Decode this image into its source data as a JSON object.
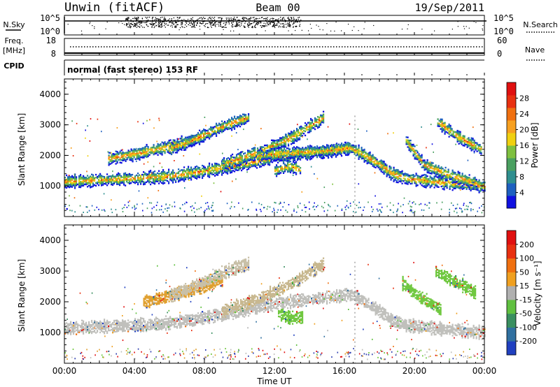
{
  "header": {
    "station": "Unwin (fitACF)",
    "beam": "Beam 00",
    "date": "19/Sep/2011"
  },
  "top_panels": {
    "nsky_label": "N.Sky",
    "nsky_ticks": [
      "10^5",
      "10^0"
    ],
    "nsearch_label": "N.Search",
    "nsearch_ticks": [
      "10^5",
      "10^0"
    ],
    "freq_label_1": "Freq.",
    "freq_label_2": "[MHz]",
    "freq_ticks": [
      "18",
      "8"
    ],
    "nave_label": "Nave",
    "nave_ticks": [
      "60",
      "0"
    ],
    "cpid_label": "CPID",
    "cpid_text": "normal (fast stereo) 153 RF"
  },
  "chart_data": [
    {
      "type": "heatmap",
      "name": "power-panel",
      "ylabel": "Slant Range [km]",
      "ylim": [
        0,
        4500
      ],
      "yticks": [
        "1000",
        "2000",
        "3000",
        "4000"
      ],
      "xlim_hours": [
        0,
        24
      ],
      "colorbar": {
        "label": "Power [dB]",
        "ticks": [
          "28",
          "24",
          "20",
          "16",
          "12",
          "8",
          "4"
        ],
        "colors": [
          "#1010e0",
          "#1e60c0",
          "#2f8f8f",
          "#4aa060",
          "#7fc040",
          "#f0d010",
          "#f7a020",
          "#f07010",
          "#e83010",
          "#e01010"
        ]
      },
      "echo_bands": [
        {
          "t": [
            0.0,
            2,
            4,
            6,
            8,
            10,
            12,
            14,
            15,
            16.3
          ],
          "r": [
            1150,
            1200,
            1250,
            1320,
            1500,
            1700,
            1950,
            2100,
            2150,
            2250
          ]
        },
        {
          "t": [
            2.5,
            4,
            6,
            7.5
          ],
          "r": [
            1900,
            2050,
            2300,
            2550
          ]
        },
        {
          "t": [
            6,
            7.5,
            9,
            10.5
          ],
          "r": [
            2200,
            2550,
            2950,
            3250
          ]
        },
        {
          "t": [
            9,
            11,
            13,
            14.8
          ],
          "r": [
            1700,
            2100,
            2600,
            3250
          ]
        },
        {
          "t": [
            11,
            13,
            15,
            16.3
          ],
          "r": [
            2000,
            2100,
            2150,
            2250
          ]
        },
        {
          "t": [
            16.3,
            17,
            18,
            18.7,
            19.5,
            21,
            23,
            24
          ],
          "r": [
            2250,
            2050,
            1700,
            1400,
            1250,
            1150,
            1050,
            1000
          ]
        },
        {
          "t": [
            19.5,
            20.5,
            22,
            23.5
          ],
          "r": [
            2500,
            1700,
            1350,
            1100
          ]
        },
        {
          "t": [
            21.3,
            22.5,
            23.8
          ],
          "r": [
            3100,
            2600,
            2200
          ]
        },
        {
          "t": [
            12,
            12.8,
            13.5
          ],
          "r": [
            1500,
            1650,
            1550
          ]
        }
      ]
    },
    {
      "type": "heatmap",
      "name": "velocity-panel",
      "ylabel": "Slant Range [km]",
      "ylim": [
        0,
        4500
      ],
      "yticks": [
        "1000",
        "2000",
        "3000",
        "4000"
      ],
      "xlim_hours": [
        0,
        24
      ],
      "xticks": [
        "00:00",
        "04:00",
        "08:00",
        "12:00",
        "16:00",
        "20:00",
        "00:00"
      ],
      "xlabel": "Time UT",
      "colorbar": {
        "label": "Velocity [m s⁻¹]",
        "ticks": [
          "200",
          "100",
          "50",
          "15",
          "-15",
          "-50",
          "-100",
          "-200"
        ],
        "colors": [
          "#2040c0",
          "#3070a0",
          "#3a8f60",
          "#60c040",
          "#b0b0b0",
          "#f0a020",
          "#f07010",
          "#e83010",
          "#e01010"
        ]
      },
      "echo_bands": [
        {
          "t": [
            0.0,
            2,
            4,
            6,
            8,
            10,
            12,
            14,
            15,
            16.3
          ],
          "r": [
            1150,
            1200,
            1250,
            1320,
            1500,
            1700,
            1950,
            2100,
            2150,
            2250
          ],
          "c": "#c0c0bc"
        },
        {
          "t": [
            4.5,
            6,
            7.5,
            9
          ],
          "r": [
            2000,
            2200,
            2450,
            2700
          ],
          "c": "#e0a030"
        },
        {
          "t": [
            6,
            7.5,
            9,
            10.5
          ],
          "r": [
            2200,
            2550,
            2950,
            3250
          ],
          "c": "#c8c0a8"
        },
        {
          "t": [
            9,
            11,
            13,
            14.8
          ],
          "r": [
            1700,
            2100,
            2600,
            3250
          ],
          "c": "#c8b890"
        },
        {
          "t": [
            16.3,
            17,
            18,
            18.7,
            19.5,
            21,
            23,
            24
          ],
          "r": [
            2250,
            2050,
            1700,
            1400,
            1250,
            1150,
            1050,
            1000
          ],
          "c": "#c0c0bc"
        },
        {
          "t": [
            19.3,
            20.2,
            21.5
          ],
          "r": [
            2600,
            2200,
            1750
          ],
          "c": "#70c840"
        },
        {
          "t": [
            21.2,
            22.2,
            23.5
          ],
          "r": [
            3000,
            2700,
            2300
          ],
          "c": "#70c840"
        },
        {
          "t": [
            12.2,
            12.8,
            13.6
          ],
          "r": [
            1650,
            1500,
            1500
          ],
          "c": "#70c840"
        }
      ]
    }
  ]
}
